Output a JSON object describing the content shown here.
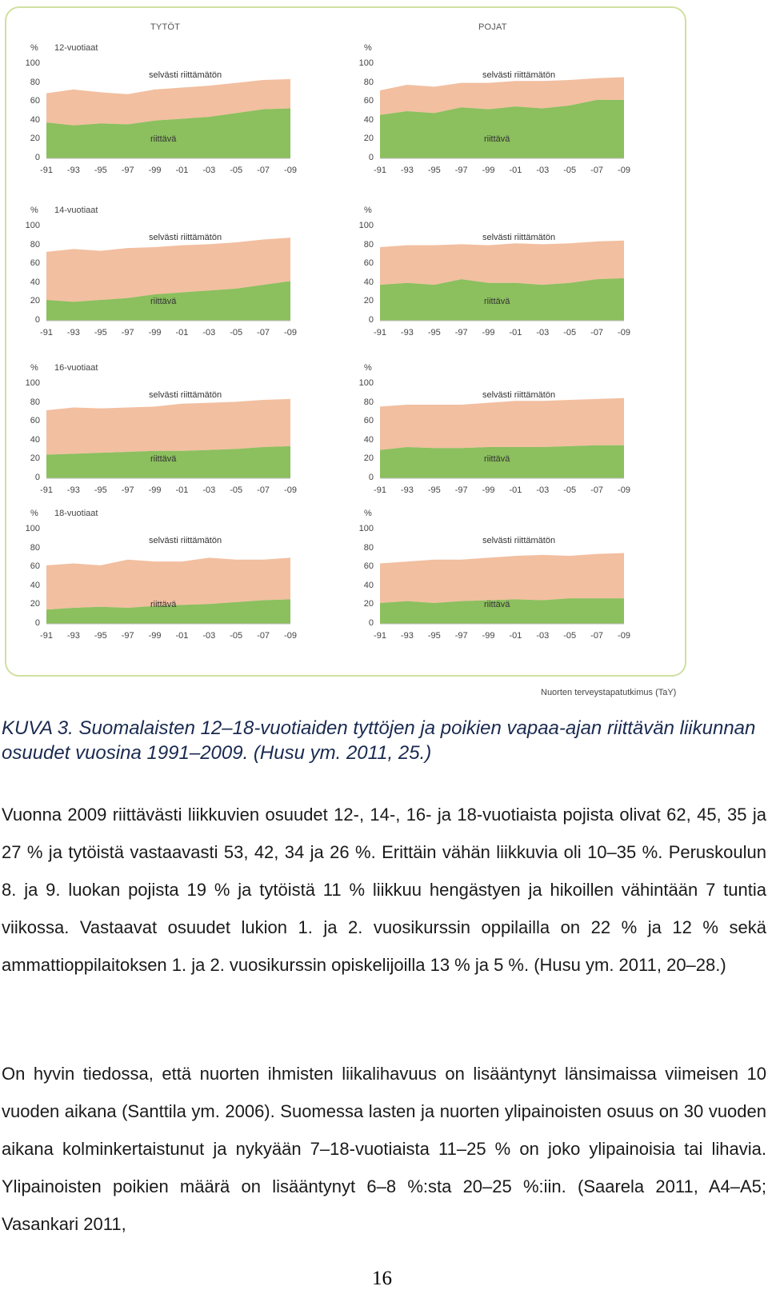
{
  "figure": {
    "columns": {
      "left": "TYTÖT",
      "right": "POJAT"
    },
    "y_unit": "%",
    "y_ticks": [
      "100",
      "80",
      "60",
      "40",
      "20",
      "0"
    ],
    "x_ticks": [
      "-91",
      "-93",
      "-95",
      "-97",
      "-99",
      "-01",
      "-03",
      "-05",
      "-07",
      "-09"
    ],
    "band_top_label": "selvästi riittämätön",
    "band_bottom_label": "riittävä",
    "colors": {
      "riittava": "#8cbf5e",
      "riittamaton": "#f2bfa0",
      "frame": "#cfe0a0"
    },
    "source": "Nuorten terveystapatutkimus (TaY)"
  },
  "chart_data": [
    {
      "type": "area",
      "group": "TYTÖT",
      "age": "12-vuotiaat",
      "x": [
        1991,
        1993,
        1995,
        1997,
        1999,
        2001,
        2003,
        2005,
        2007,
        2009
      ],
      "series": [
        {
          "name": "riittävä",
          "values": [
            38,
            35,
            37,
            36,
            40,
            42,
            44,
            48,
            52,
            53
          ]
        },
        {
          "name": "selvästi riittämätön",
          "values": [
            69,
            73,
            70,
            68,
            73,
            75,
            77,
            80,
            83,
            84
          ]
        }
      ]
    },
    {
      "type": "area",
      "group": "POJAT",
      "age": "",
      "x": [
        1991,
        1993,
        1995,
        1997,
        1999,
        2001,
        2003,
        2005,
        2007,
        2009
      ],
      "series": [
        {
          "name": "riittävä",
          "values": [
            46,
            50,
            48,
            54,
            52,
            55,
            53,
            56,
            62,
            62
          ]
        },
        {
          "name": "selvästi riittämätön",
          "values": [
            72,
            78,
            76,
            80,
            80,
            82,
            82,
            83,
            85,
            86
          ]
        }
      ]
    },
    {
      "type": "area",
      "group": "TYTÖT",
      "age": "14-vuotiaat",
      "x": [
        1991,
        1993,
        1995,
        1997,
        1999,
        2001,
        2003,
        2005,
        2007,
        2009
      ],
      "series": [
        {
          "name": "riittävä",
          "values": [
            22,
            20,
            22,
            24,
            28,
            30,
            32,
            34,
            38,
            42
          ]
        },
        {
          "name": "selvästi riittämätön",
          "values": [
            73,
            76,
            74,
            77,
            78,
            80,
            81,
            83,
            86,
            88
          ]
        }
      ]
    },
    {
      "type": "area",
      "group": "POJAT",
      "age": "",
      "x": [
        1991,
        1993,
        1995,
        1997,
        1999,
        2001,
        2003,
        2005,
        2007,
        2009
      ],
      "series": [
        {
          "name": "riittävä",
          "values": [
            38,
            40,
            38,
            44,
            40,
            40,
            38,
            40,
            44,
            45
          ]
        },
        {
          "name": "selvästi riittämätön",
          "values": [
            78,
            80,
            80,
            81,
            80,
            82,
            81,
            82,
            84,
            85
          ]
        }
      ]
    },
    {
      "type": "area",
      "group": "TYTÖT",
      "age": "16-vuotiaat",
      "x": [
        1991,
        1993,
        1995,
        1997,
        1999,
        2001,
        2003,
        2005,
        2007,
        2009
      ],
      "series": [
        {
          "name": "riittävä",
          "values": [
            25,
            26,
            27,
            28,
            29,
            29,
            30,
            31,
            33,
            34
          ]
        },
        {
          "name": "selvästi riittämätön",
          "values": [
            72,
            75,
            74,
            75,
            76,
            79,
            80,
            81,
            83,
            84
          ]
        }
      ]
    },
    {
      "type": "area",
      "group": "POJAT",
      "age": "",
      "x": [
        1991,
        1993,
        1995,
        1997,
        1999,
        2001,
        2003,
        2005,
        2007,
        2009
      ],
      "series": [
        {
          "name": "riittävä",
          "values": [
            30,
            33,
            32,
            32,
            33,
            33,
            33,
            34,
            35,
            35
          ]
        },
        {
          "name": "selvästi riittämätön",
          "values": [
            76,
            78,
            78,
            78,
            80,
            82,
            82,
            83,
            84,
            85
          ]
        }
      ]
    },
    {
      "type": "area",
      "group": "TYTÖT",
      "age": "18-vuotiaat",
      "x": [
        1991,
        1993,
        1995,
        1997,
        1999,
        2001,
        2003,
        2005,
        2007,
        2009
      ],
      "series": [
        {
          "name": "riittävä",
          "values": [
            15,
            17,
            18,
            17,
            19,
            20,
            21,
            23,
            25,
            26
          ]
        },
        {
          "name": "selvästi riittämätön",
          "values": [
            62,
            64,
            62,
            68,
            66,
            66,
            70,
            68,
            68,
            70
          ]
        }
      ]
    },
    {
      "type": "area",
      "group": "POJAT",
      "age": "",
      "x": [
        1991,
        1993,
        1995,
        1997,
        1999,
        2001,
        2003,
        2005,
        2007,
        2009
      ],
      "series": [
        {
          "name": "riittävä",
          "values": [
            22,
            24,
            22,
            24,
            25,
            26,
            25,
            27,
            27,
            27
          ]
        },
        {
          "name": "selvästi riittämätön",
          "values": [
            64,
            66,
            68,
            68,
            70,
            72,
            73,
            72,
            74,
            75
          ]
        }
      ]
    }
  ],
  "caption": "KUVA 3. Suomalaisten 12–18-vuotiaiden tyttöjen ja poikien vapaa-ajan riittävän liikunnan osuudet vuosina 1991–2009. (Husu ym. 2011, 25.)",
  "paragraphs": [
    "Vuonna 2009 riittävästi liikkuvien osuudet 12-, 14-, 16- ja 18-vuotiaista pojista olivat 62, 45, 35 ja 27 % ja tytöistä vastaavasti 53, 42, 34 ja 26 %. Erittäin vähän liikkuvia oli 10–35 %. Peruskoulun 8. ja 9. luokan pojista 19 % ja tytöistä 11 % liikkuu hengästyen ja hikoillen vähintään 7 tuntia viikossa. Vastaavat osuudet lukion 1. ja 2. vuosikurssin oppilailla on 22 % ja 12 % sekä ammattioppilaitoksen 1. ja 2. vuosikurssin opiskelijoilla 13 % ja 5 %. (Husu ym. 2011, 20–28.)",
    "On hyvin tiedossa, että nuorten ihmisten liikalihavuus on lisääntynyt länsimaissa viimeisen 10 vuoden aikana (Santtila ym. 2006). Suomessa lasten ja nuorten ylipainoisten osuus on 30 vuoden aikana kolminkertaistunut ja nykyään 7–18-vuotiaista 11–25 % on joko ylipainoisia tai lihavia. Ylipainoisten poikien määrä on lisääntynyt 6–8 %:sta 20–25 %:iin. (Saarela 2011, A4–A5; Vasankari 2011,"
  ],
  "page_number": "16"
}
